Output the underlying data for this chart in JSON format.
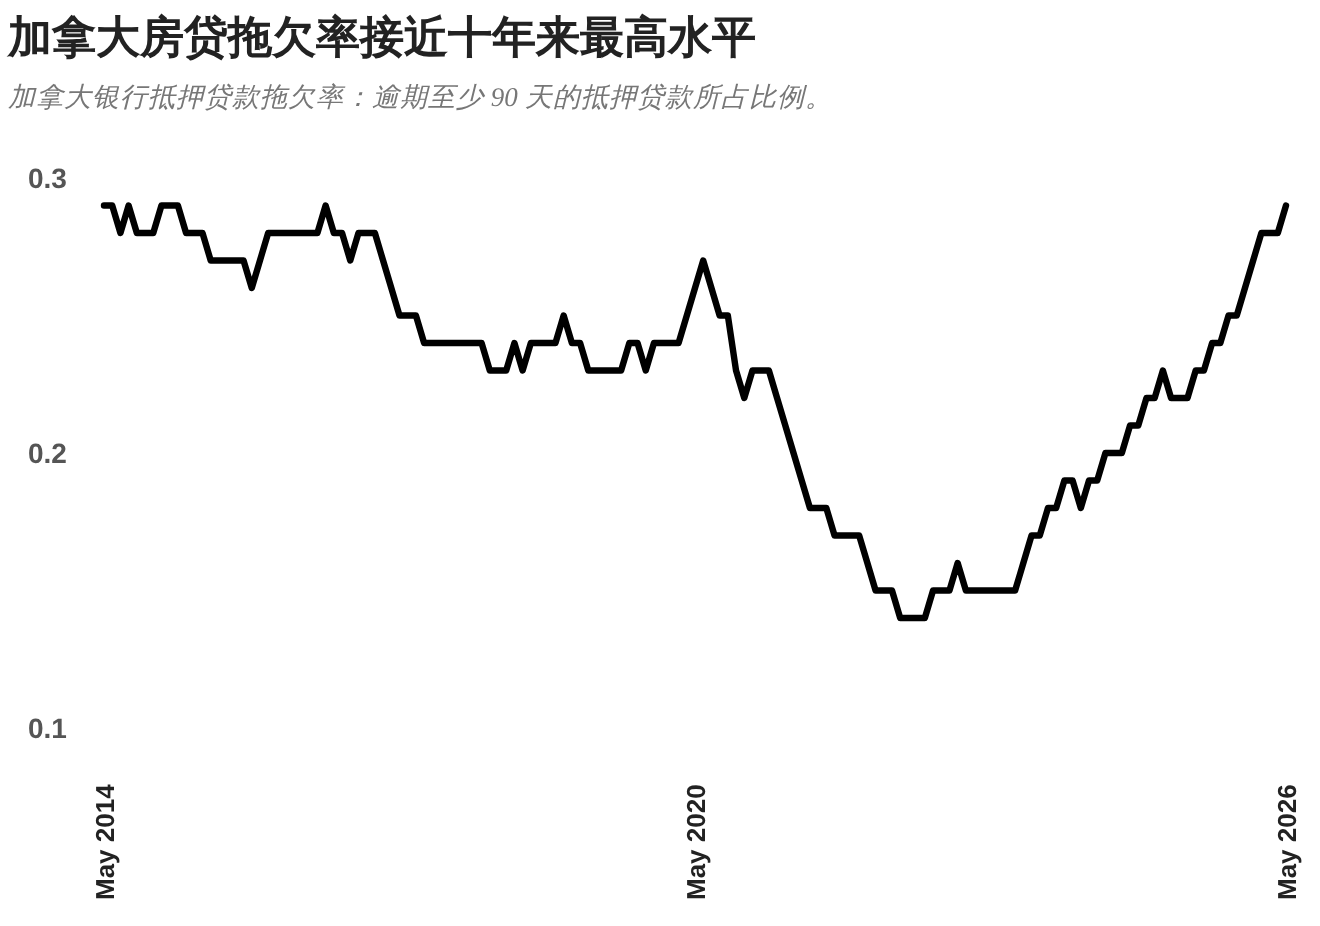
{
  "chart_data": {
    "type": "line",
    "title": "加拿大房贷拖欠率接近十年来最高水平",
    "subtitle": "加拿大银行抵押贷款拖欠率：逾期至少 90 天的抵押贷款所占比例。",
    "x": [
      "2014-05",
      "2014-06",
      "2014-07",
      "2014-08",
      "2014-09",
      "2014-10",
      "2014-11",
      "2014-12",
      "2015-01",
      "2015-02",
      "2015-03",
      "2015-04",
      "2015-05",
      "2015-06",
      "2015-07",
      "2015-08",
      "2015-09",
      "2015-10",
      "2015-11",
      "2015-12",
      "2016-01",
      "2016-02",
      "2016-03",
      "2016-04",
      "2016-05",
      "2016-06",
      "2016-07",
      "2016-08",
      "2016-09",
      "2016-10",
      "2016-11",
      "2016-12",
      "2017-01",
      "2017-02",
      "2017-03",
      "2017-04",
      "2017-05",
      "2017-06",
      "2017-07",
      "2017-08",
      "2017-09",
      "2017-10",
      "2017-11",
      "2017-12",
      "2018-01",
      "2018-02",
      "2018-03",
      "2018-04",
      "2018-05",
      "2018-06",
      "2018-07",
      "2018-08",
      "2018-09",
      "2018-10",
      "2018-11",
      "2018-12",
      "2019-01",
      "2019-02",
      "2019-03",
      "2019-04",
      "2019-05",
      "2019-06",
      "2019-07",
      "2019-08",
      "2019-09",
      "2019-10",
      "2019-11",
      "2019-12",
      "2020-01",
      "2020-02",
      "2020-03",
      "2020-04",
      "2020-05",
      "2020-06",
      "2020-07",
      "2020-08",
      "2020-09",
      "2020-10",
      "2020-11",
      "2020-12",
      "2021-01",
      "2021-02",
      "2021-03",
      "2021-04",
      "2021-05",
      "2021-06",
      "2021-07",
      "2021-08",
      "2021-09",
      "2021-10",
      "2021-11",
      "2021-12",
      "2022-01",
      "2022-02",
      "2022-03",
      "2022-04",
      "2022-05",
      "2022-06",
      "2022-07",
      "2022-08",
      "2022-09",
      "2022-10",
      "2022-11",
      "2022-12",
      "2023-01",
      "2023-02",
      "2023-03",
      "2023-04",
      "2023-05",
      "2023-06",
      "2023-07",
      "2023-08",
      "2023-09",
      "2023-10",
      "2023-11",
      "2023-12",
      "2024-01",
      "2024-02",
      "2024-03",
      "2024-04",
      "2024-05",
      "2024-06",
      "2024-07",
      "2024-08",
      "2024-09",
      "2024-10",
      "2024-11",
      "2024-12",
      "2025-01",
      "2025-02",
      "2025-03",
      "2025-04",
      "2025-05",
      "2025-06",
      "2025-07",
      "2025-08",
      "2025-09",
      "2025-10",
      "2025-11",
      "2025-12",
      "2026-01",
      "2026-02",
      "2026-03",
      "2026-04",
      "2026-05"
    ],
    "series": [
      {
        "color": "#000000",
        "values": [
          0.29,
          0.29,
          0.28,
          0.29,
          0.28,
          0.28,
          0.28,
          0.29,
          0.29,
          0.29,
          0.28,
          0.28,
          0.28,
          0.27,
          0.27,
          0.27,
          0.27,
          0.27,
          0.26,
          0.27,
          0.28,
          0.28,
          0.28,
          0.28,
          0.28,
          0.28,
          0.28,
          0.29,
          0.28,
          0.28,
          0.27,
          0.28,
          0.28,
          0.28,
          0.27,
          0.26,
          0.25,
          0.25,
          0.25,
          0.24,
          0.24,
          0.24,
          0.24,
          0.24,
          0.24,
          0.24,
          0.24,
          0.23,
          0.23,
          0.23,
          0.24,
          0.23,
          0.24,
          0.24,
          0.24,
          0.24,
          0.25,
          0.24,
          0.24,
          0.23,
          0.23,
          0.23,
          0.23,
          0.23,
          0.24,
          0.24,
          0.23,
          0.24,
          0.24,
          0.24,
          0.24,
          0.25,
          0.26,
          0.27,
          0.26,
          0.25,
          0.25,
          0.23,
          0.22,
          0.23,
          0.23,
          0.23,
          0.22,
          0.21,
          0.2,
          0.19,
          0.18,
          0.18,
          0.18,
          0.17,
          0.17,
          0.17,
          0.17,
          0.16,
          0.15,
          0.15,
          0.15,
          0.14,
          0.14,
          0.14,
          0.14,
          0.15,
          0.15,
          0.15,
          0.16,
          0.15,
          0.15,
          0.15,
          0.15,
          0.15,
          0.15,
          0.15,
          0.16,
          0.17,
          0.17,
          0.18,
          0.18,
          0.19,
          0.19,
          0.18,
          0.19,
          0.19,
          0.2,
          0.2,
          0.2,
          0.21,
          0.21,
          0.22,
          0.22,
          0.23,
          0.22,
          0.22,
          0.22,
          0.23,
          0.23,
          0.24,
          0.24,
          0.25,
          0.25,
          0.26,
          0.27,
          0.28,
          0.28,
          0.28,
          0.29
        ]
      }
    ],
    "xlim": [
      "2014-05",
      "2026-05"
    ],
    "xticks": [
      {
        "value": "2014-05",
        "label": "May 2014"
      },
      {
        "value": "2020-05",
        "label": "May 2020"
      },
      {
        "value": "2026-05",
        "label": "May 2026"
      }
    ],
    "ylim": [
      0.1,
      0.3
    ],
    "yticks": [
      0.1,
      0.2,
      0.3
    ]
  }
}
